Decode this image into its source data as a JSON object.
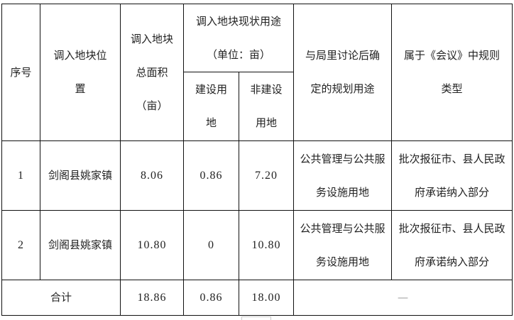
{
  "headers": {
    "seq": "序号",
    "location": "调入地块位置",
    "total_area": "调入地块总面积（亩）",
    "current_use": "调入地块现状用途",
    "current_use_unit": "（单位：亩）",
    "construction": "建设用地",
    "non_construction": "非建设用地",
    "planned_use": "与局里讨论后确定的规划用途",
    "category": "属于《会议》中规则类型"
  },
  "rows": [
    {
      "seq": "1",
      "location": "剑阁县姚家镇",
      "total_area": "8.06",
      "construction": "0.86",
      "non_construction": "7.20",
      "planned_use": "公共管理与公共服务设施用地",
      "category": "批次报征市、县人民政府承诺纳入部分"
    },
    {
      "seq": "2",
      "location": "剑阁县姚家镇",
      "total_area": "10.80",
      "construction": "0",
      "non_construction": "10.80",
      "planned_use": "公共管理与公共服务设施用地",
      "category": "批次报征市、县人民政府承诺纳入部分"
    }
  ],
  "total": {
    "label": "合计",
    "total_area": "18.86",
    "construction": "0.86",
    "non_construction": "18.00",
    "rest": "—"
  }
}
